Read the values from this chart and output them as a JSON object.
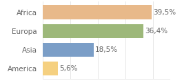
{
  "categories": [
    "America",
    "Asia",
    "Europa",
    "Africa"
  ],
  "values": [
    5.6,
    18.5,
    36.4,
    39.5
  ],
  "labels": [
    "5,6%",
    "18,5%",
    "36,4%",
    "39,5%"
  ],
  "bar_colors": [
    "#f5d080",
    "#7b9ec7",
    "#9db87a",
    "#e8b98a"
  ],
  "background_color": "#ffffff",
  "xlim": [
    0,
    46
  ],
  "bar_height": 0.75,
  "label_fontsize": 7.5,
  "category_fontsize": 7.5,
  "label_color": "#666666",
  "tick_color": "#999999",
  "grid_color": "#dddddd"
}
